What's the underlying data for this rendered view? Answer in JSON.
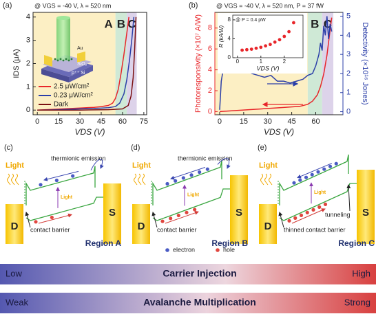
{
  "chart_data": [
    {
      "type": "line",
      "panel": "(a)",
      "title": "@ VGS = -40 V, λ = 520 nm",
      "xlabel": "VDS (V)",
      "ylabel": "IDS (μA)",
      "xlim": [
        -3,
        77
      ],
      "xticks": [
        0,
        15,
        30,
        45,
        60,
        75
      ],
      "ylim": [
        -0.2,
        4.2
      ],
      "yticks": [
        0,
        1,
        2,
        3,
        4
      ],
      "regions": [
        {
          "label": "A",
          "x0": -3,
          "x1": 55,
          "color": "#fcefc4"
        },
        {
          "label": "B",
          "x0": 55,
          "x1": 63,
          "color": "#cfe9d6"
        },
        {
          "label": "C",
          "x0": 63,
          "x1": 70,
          "color": "#ddd3ea"
        }
      ],
      "series": [
        {
          "name": "2.5 μW/cm²",
          "color": "#e8262a",
          "x": [
            0,
            10,
            20,
            30,
            40,
            45,
            50,
            53,
            55,
            57,
            59,
            61,
            63,
            64.5
          ],
          "values": [
            0,
            0.03,
            0.06,
            0.09,
            0.12,
            0.15,
            0.2,
            0.3,
            0.5,
            0.9,
            1.6,
            2.4,
            3.3,
            4.0
          ]
        },
        {
          "name": "0.23 μW/cm²",
          "color": "#2b3fa8",
          "x": [
            0,
            10,
            20,
            30,
            40,
            50,
            55,
            58,
            61,
            63,
            65,
            66.5,
            68
          ],
          "values": [
            0,
            0.01,
            0.03,
            0.05,
            0.07,
            0.1,
            0.15,
            0.3,
            0.7,
            1.3,
            2.2,
            3.0,
            4.0
          ]
        },
        {
          "name": "Dark",
          "color": "#7b1113",
          "x": [
            0,
            10,
            20,
            30,
            40,
            50,
            60,
            64,
            66,
            67.5,
            68.5,
            69.5
          ],
          "values": [
            0,
            0,
            0,
            0,
            0.01,
            0.02,
            0.05,
            0.2,
            0.6,
            1.4,
            2.6,
            4.0
          ]
        }
      ],
      "inset_labels": [
        "Au",
        "SiO₂",
        "p⁺⁺ Si"
      ]
    },
    {
      "type": "line",
      "panel": "(b)",
      "title": "@ VGS = -40 V, λ = 520 nm, P = 37 fW",
      "xlabel": "VDS (V)",
      "ylabel": "Photoresponsivity (×10⁷ A/W)",
      "y2label": "Detectivity (×10¹⁶ Jones)",
      "xlim": [
        -3,
        77
      ],
      "xticks": [
        0,
        15,
        30,
        45,
        60
      ],
      "ylim": [
        -0.3,
        9.5
      ],
      "yticks": [
        0,
        2,
        4,
        6,
        8
      ],
      "y2lim": [
        -0.16,
        5.2
      ],
      "y2ticks": [
        0,
        1,
        2,
        3,
        4,
        5
      ],
      "regions": [
        {
          "label": "A",
          "x0": -3,
          "x1": 55,
          "color": "#fcefc4"
        },
        {
          "label": "B",
          "x0": 55,
          "x1": 64,
          "color": "#cfe9d6"
        },
        {
          "label": "C",
          "x0": 64,
          "x1": 71,
          "color": "#ddd3ea"
        }
      ],
      "series": [
        {
          "name": "Photoresponsivity",
          "color": "#e8262a",
          "x": [
            0,
            10,
            20,
            30,
            40,
            50,
            55,
            58,
            61,
            63,
            65,
            67,
            68.5,
            70
          ],
          "values": [
            0,
            0.1,
            0.2,
            0.3,
            0.4,
            0.5,
            0.7,
            1.0,
            1.6,
            2.4,
            3.6,
            5.4,
            7.2,
            9.0
          ]
        },
        {
          "name": "Detectivity",
          "color": "#2b3fa8",
          "axis": "y2",
          "x": [
            0,
            1,
            2,
            4,
            6,
            8,
            10,
            13,
            16,
            20,
            24,
            28,
            32,
            36,
            40,
            44,
            48,
            52,
            55,
            58,
            60,
            62,
            63,
            64,
            65,
            66,
            67,
            68,
            69,
            70
          ],
          "values": [
            0.1,
            1.6,
            2.1,
            2.4,
            2.5,
            2.3,
            2.6,
            2.2,
            2.3,
            2.0,
            1.9,
            1.8,
            1.9,
            1.6,
            1.6,
            1.5,
            1.6,
            1.7,
            1.9,
            2.0,
            2.4,
            3.0,
            3.6,
            3.2,
            4.5,
            4.0,
            5.0,
            3.8,
            4.6,
            4.2
          ]
        }
      ],
      "inset": {
        "type": "scatter",
        "title": "@ P = 0.4 pW",
        "xlabel": "VDS (V)",
        "ylabel": "R (kA/W)",
        "color": "#e8262a",
        "x": [
          0.2,
          0.4,
          0.6,
          0.8,
          1.0,
          1.2,
          1.4,
          1.6,
          1.8,
          2.0,
          2.2,
          2.4
        ],
        "values": [
          1.6,
          1.7,
          1.8,
          2.0,
          2.2,
          2.5,
          2.8,
          3.3,
          3.8,
          4.5,
          5.5,
          7.4
        ],
        "xlim": [
          -0.2,
          2.8
        ],
        "xticks": [
          0,
          1,
          2
        ],
        "ylim": [
          0,
          9
        ],
        "yticks": [
          0,
          4,
          8
        ]
      }
    }
  ],
  "diagrams": [
    {
      "panel": "(c)",
      "light": "Light",
      "photo_label": "Light",
      "drain": "D",
      "source": "S",
      "annotations": [
        "thermionic emission",
        "contact barrier"
      ],
      "region": "Region A"
    },
    {
      "panel": "(d)",
      "light": "Light",
      "photo_label": "Light",
      "drain": "D",
      "source": "S",
      "annotations": [
        "thermionic emission",
        "contact barrier"
      ],
      "region": "Region B"
    },
    {
      "panel": "(e)",
      "light": "Light",
      "photo_label": "Light",
      "drain": "D",
      "source": "S",
      "annotations": [
        "tunneling",
        "thinned contact barrier"
      ],
      "region": "Region C"
    }
  ],
  "legend": {
    "electron": "electron",
    "hole": "hole"
  },
  "bars": [
    {
      "left": "Low",
      "title": "Carrier Injection",
      "right": "High"
    },
    {
      "left": "Weak",
      "title": "Avalanche Multiplication",
      "right": "Strong"
    }
  ]
}
